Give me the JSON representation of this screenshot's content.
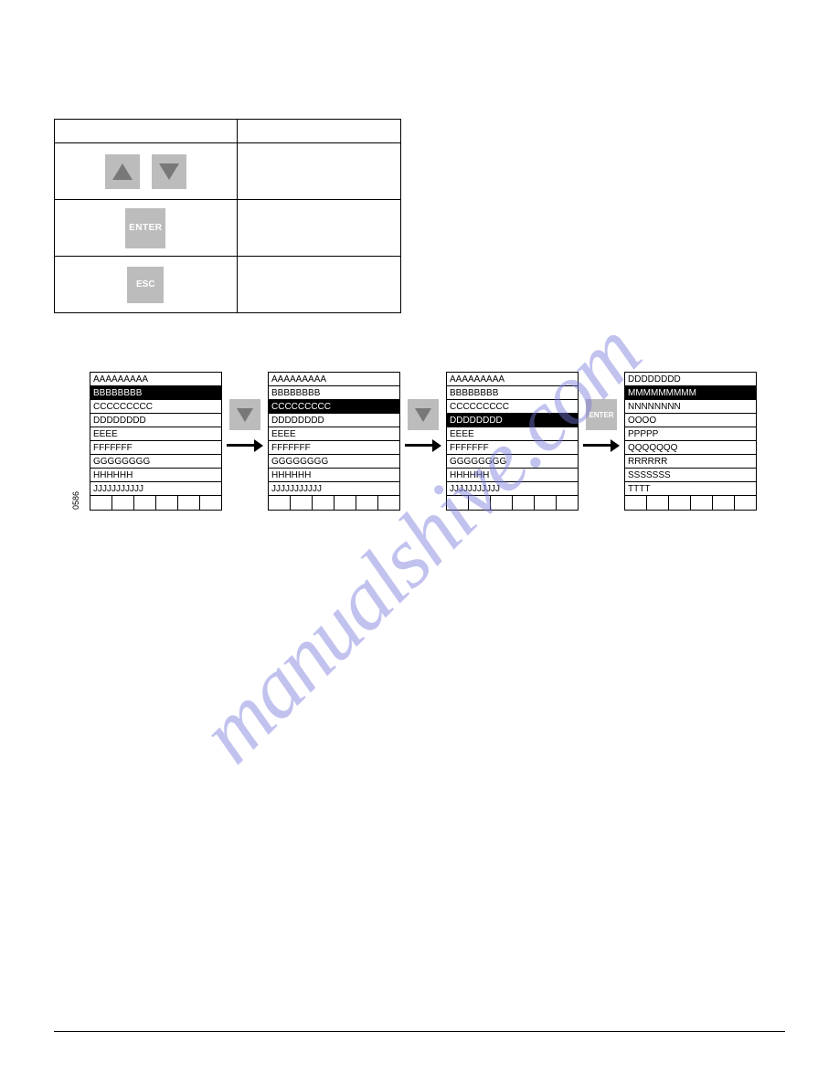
{
  "watermark_text": "manualshive.com",
  "colors": {
    "button_bg": "#bdbcbc",
    "button_glyph": "#787878",
    "button_text": "#ffffff",
    "text": "#000000",
    "selected_bg": "#000000",
    "selected_fg": "#ffffff",
    "background": "#ffffff",
    "watermark": "rgba(120,120,220,0.45)"
  },
  "keypad": {
    "enter_label": "ENTER",
    "esc_label": "ESC"
  },
  "figure_id": "0586",
  "menus": [
    {
      "rows": [
        {
          "text": "AAAAAAAAA",
          "selected": false
        },
        {
          "text": "BBBBBBBB",
          "selected": true
        },
        {
          "text": "CCCCCCCCC",
          "selected": false
        },
        {
          "text": "DDDDDDDD",
          "selected": false
        },
        {
          "text": "EEEE",
          "selected": false
        },
        {
          "text": "FFFFFFF",
          "selected": false
        },
        {
          "text": "GGGGGGGG",
          "selected": false
        },
        {
          "text": "HHHHHH",
          "selected": false
        },
        {
          "text": "JJJJJJJJJJJ",
          "selected": false
        }
      ]
    },
    {
      "rows": [
        {
          "text": "AAAAAAAAA",
          "selected": false
        },
        {
          "text": "BBBBBBBB",
          "selected": false
        },
        {
          "text": "CCCCCCCCC",
          "selected": true
        },
        {
          "text": "DDDDDDDD",
          "selected": false
        },
        {
          "text": "EEEE",
          "selected": false
        },
        {
          "text": "FFFFFFF",
          "selected": false
        },
        {
          "text": "GGGGGGGG",
          "selected": false
        },
        {
          "text": "HHHHHH",
          "selected": false
        },
        {
          "text": "JJJJJJJJJJJ",
          "selected": false
        }
      ]
    },
    {
      "rows": [
        {
          "text": "AAAAAAAAA",
          "selected": false
        },
        {
          "text": "BBBBBBBB",
          "selected": false
        },
        {
          "text": "CCCCCCCCC",
          "selected": false
        },
        {
          "text": "DDDDDDDD",
          "selected": true
        },
        {
          "text": "EEEE",
          "selected": false
        },
        {
          "text": "FFFFFFF",
          "selected": false
        },
        {
          "text": "GGGGGGGG",
          "selected": false
        },
        {
          "text": "HHHHHH",
          "selected": false
        },
        {
          "text": "JJJJJJJJJJJ",
          "selected": false
        }
      ]
    },
    {
      "rows": [
        {
          "text": "DDDDDDDD",
          "selected": false
        },
        {
          "text": "MMMMMMMMM",
          "selected": true
        },
        {
          "text": "NNNNNNNN",
          "selected": false
        },
        {
          "text": "OOOO",
          "selected": false
        },
        {
          "text": "PPPPP",
          "selected": false
        },
        {
          "text": "QQQQQQQ",
          "selected": false
        },
        {
          "text": "RRRRRR",
          "selected": false
        },
        {
          "text": "SSSSSSS",
          "selected": false
        },
        {
          "text": "TTTT",
          "selected": false
        }
      ]
    }
  ],
  "connectors": [
    {
      "button": "down"
    },
    {
      "button": "down"
    },
    {
      "button": "enter",
      "label": "ENTER"
    }
  ],
  "footer_segments": 6
}
